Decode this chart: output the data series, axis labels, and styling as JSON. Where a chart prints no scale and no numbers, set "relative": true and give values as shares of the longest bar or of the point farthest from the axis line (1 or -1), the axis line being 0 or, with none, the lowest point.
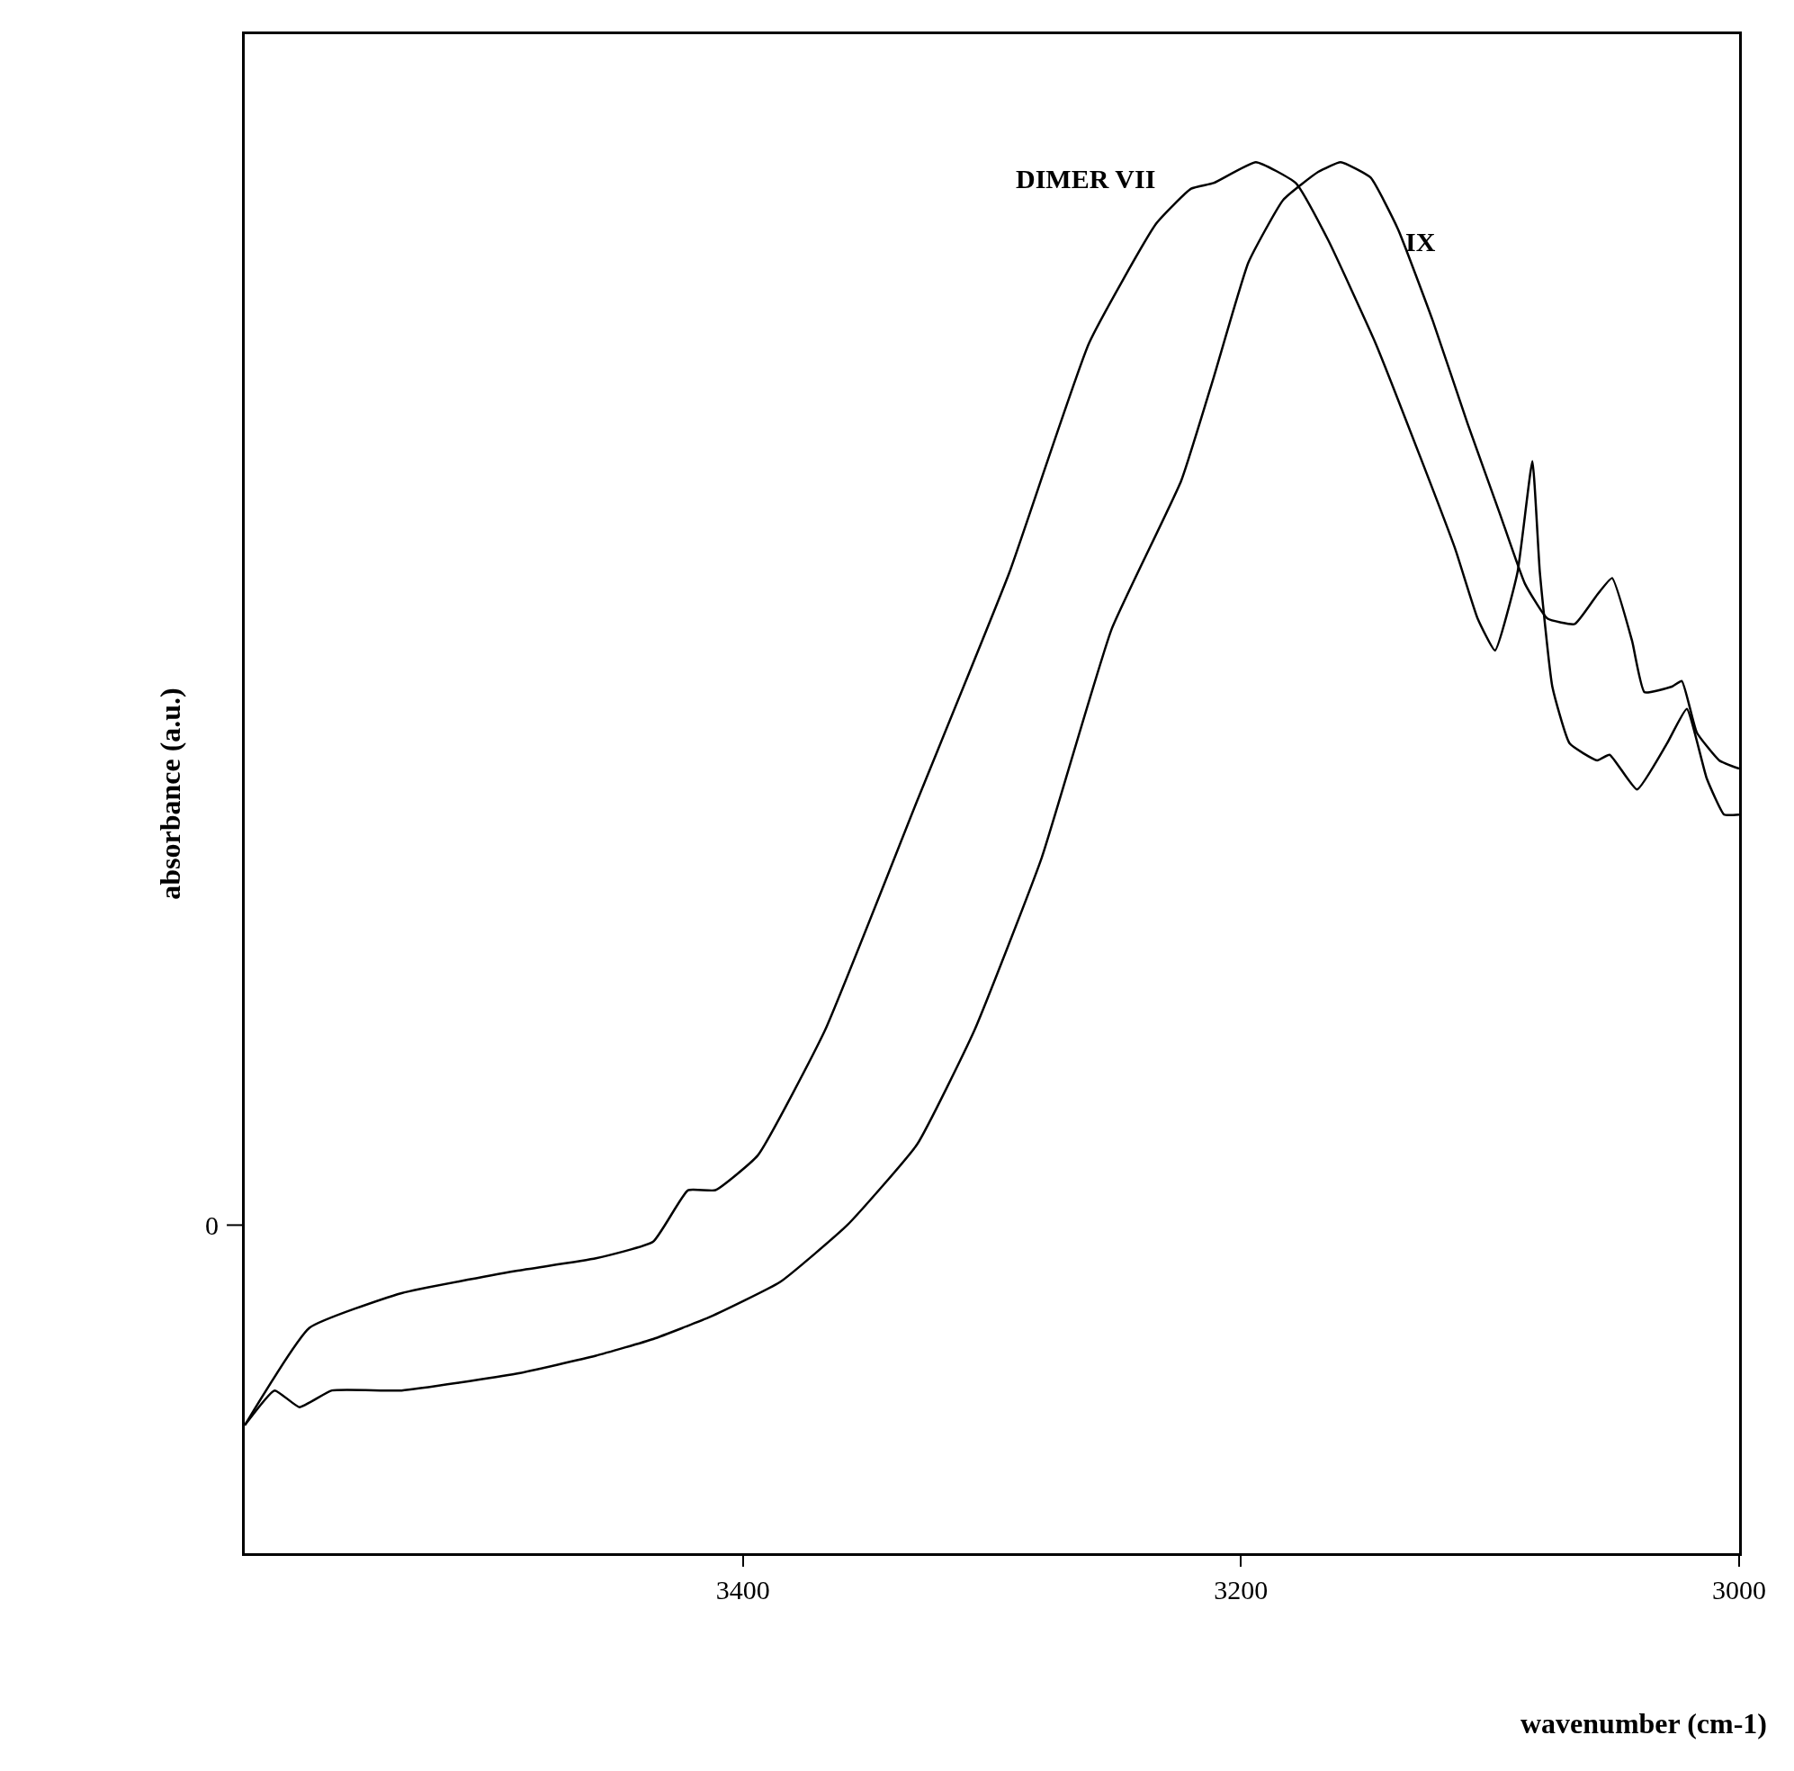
{
  "chart_data": {
    "type": "line",
    "relative": true,
    "xlabel": "wavenumber (cm-1)",
    "ylabel": "absorbance (a.u.)",
    "xlim": [
      3600,
      3000
    ],
    "xticks": [
      3400,
      3200,
      3000
    ],
    "legend": false,
    "marker": "none",
    "line_style": "solid",
    "annotations": [
      "0"
    ],
    "series": [
      {
        "name": "DIMER VII",
        "color": "#000000",
        "x": [
          3600,
          3574,
          3537,
          3491,
          3459,
          3436,
          3422,
          3411,
          3394,
          3367,
          3330,
          3293,
          3261,
          3234,
          3220,
          3211,
          3194,
          3178,
          3165,
          3146,
          3128,
          3114,
          3105,
          3098,
          3089,
          3083,
          3080,
          3075,
          3068,
          3057,
          3052,
          3041,
          3029,
          3021,
          3013,
          3006,
          3000
        ],
        "values": [
          0.092,
          0.162,
          0.187,
          0.203,
          0.212,
          0.224,
          0.261,
          0.261,
          0.286,
          0.376,
          0.541,
          0.705,
          0.87,
          0.956,
          0.981,
          0.985,
          1.0,
          0.985,
          0.944,
          0.87,
          0.788,
          0.722,
          0.672,
          0.649,
          0.705,
          0.785,
          0.705,
          0.623,
          0.582,
          0.57,
          0.574,
          0.549,
          0.582,
          0.607,
          0.557,
          0.531,
          0.531
        ]
      },
      {
        "name": "IX",
        "color": "#000000",
        "x": [
          3600,
          3588,
          3578,
          3565,
          3537,
          3491,
          3459,
          3436,
          3413,
          3385,
          3358,
          3330,
          3307,
          3280,
          3252,
          3224,
          3211,
          3197,
          3183,
          3169,
          3160,
          3148,
          3137,
          3123,
          3109,
          3096,
          3086,
          3077,
          3066,
          3057,
          3051,
          3043,
          3038,
          3027,
          3023,
          3017,
          3008,
          3000
        ],
        "values": [
          0.092,
          0.117,
          0.105,
          0.117,
          0.117,
          0.129,
          0.142,
          0.154,
          0.17,
          0.195,
          0.236,
          0.294,
          0.376,
          0.5,
          0.664,
          0.771,
          0.845,
          0.928,
          0.973,
          0.993,
          1.0,
          0.989,
          0.952,
          0.886,
          0.812,
          0.747,
          0.697,
          0.672,
          0.668,
          0.689,
          0.701,
          0.656,
          0.619,
          0.623,
          0.627,
          0.59,
          0.57,
          0.564
        ]
      }
    ]
  }
}
